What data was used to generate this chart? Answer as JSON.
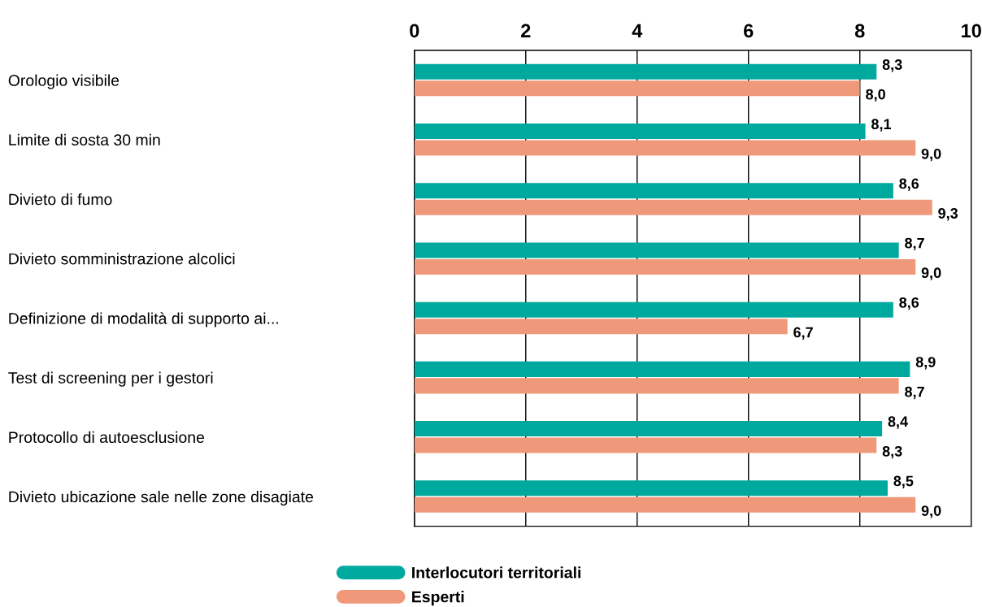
{
  "chart_data": {
    "type": "bar",
    "orientation": "horizontal",
    "categories": [
      "Orologio visibile",
      "Limite di sosta 30 min",
      "Divieto di fumo",
      "Divieto somministrazione alcolici",
      "Definizione di modalità di supporto ai...",
      "Test di screening per i gestori",
      "Protocollo di autoesclusione",
      "Divieto ubicazione sale nelle zone disagiate"
    ],
    "series": [
      {
        "name": "Interlocutori territoriali",
        "color": "#00a99d",
        "values": [
          8.3,
          8.1,
          8.6,
          8.7,
          8.6,
          8.9,
          8.4,
          8.5
        ],
        "value_labels": [
          "8,3",
          "8,1",
          "8,6",
          "8,7",
          "8,6",
          "8,9",
          "8,4",
          "8,5"
        ]
      },
      {
        "name": "Esperti",
        "color": "#f0997a",
        "values": [
          8.0,
          9.0,
          9.3,
          9.0,
          6.7,
          8.7,
          8.3,
          9.0
        ],
        "value_labels": [
          "8,0",
          "9,0",
          "9,3",
          "9,0",
          "6,7",
          "8,7",
          "8,3",
          "9,0"
        ]
      }
    ],
    "xlim": [
      0,
      10
    ],
    "xticks": [
      0,
      2,
      4,
      6,
      8,
      10
    ],
    "grid": "x",
    "legend": "bottom"
  }
}
